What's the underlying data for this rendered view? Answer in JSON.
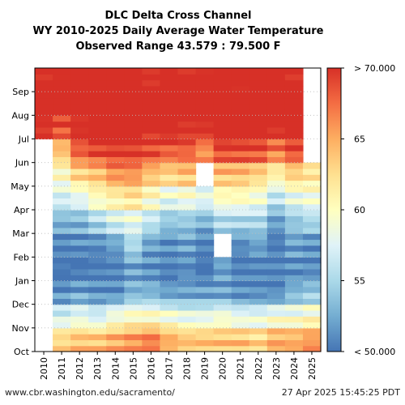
{
  "chart_data": {
    "type": "heatmap",
    "title": "DLC Delta Cross Channel",
    "subtitle": "WY 2010-2025 Daily Average Water Temperature",
    "range_text": "Observed Range 43.579 : 79.500 F",
    "x_categories": [
      "2010",
      "2011",
      "2012",
      "2013",
      "2014",
      "2015",
      "2016",
      "2017",
      "2018",
      "2019",
      "2020",
      "2021",
      "2022",
      "2023",
      "2024",
      "2025"
    ],
    "y_month_labels": [
      "Oct",
      "Nov",
      "Dec",
      "Jan",
      "Feb",
      "Mar",
      "Apr",
      "May",
      "Jun",
      "Jul",
      "Aug",
      "Sep"
    ],
    "colorbar": {
      "min": 50,
      "max": 70,
      "ticks": [
        {
          "value": 70,
          "label": "> 70.000"
        },
        {
          "value": 65,
          "label": "65"
        },
        {
          "value": 60,
          "label": "60"
        },
        {
          "value": 55,
          "label": "55"
        },
        {
          "value": 50,
          "label": "< 50.000"
        }
      ],
      "colors": [
        "#4575b4",
        "#74add1",
        "#abd9e9",
        "#e0f3f8",
        "#ffffbf",
        "#fee090",
        "#fdae61",
        "#f46d43",
        "#d73027"
      ]
    },
    "grid": "dotted",
    "monthly_mean_temp_F": {
      "2010": [
        null,
        null,
        null,
        null,
        null,
        null,
        null,
        null,
        null,
        71,
        72,
        71
      ],
      "2011": [
        63,
        57,
        51,
        50,
        50,
        53,
        57,
        60,
        64,
        69,
        72,
        71
      ],
      "2012": [
        64,
        58,
        52,
        50,
        51,
        53,
        58,
        63,
        68,
        71,
        72,
        71
      ],
      "2013": [
        64,
        57,
        51,
        50,
        51,
        55,
        60,
        64,
        69,
        72,
        72,
        71
      ],
      "2014": [
        65,
        59,
        51,
        50,
        52,
        57,
        61,
        66,
        70,
        72,
        73,
        72
      ],
      "2015": [
        66,
        60,
        53,
        52,
        55,
        58,
        62,
        66,
        70,
        72,
        73,
        72
      ],
      "2016": [
        67,
        60,
        53,
        51,
        52,
        56,
        60,
        64,
        69,
        71,
        72,
        71
      ],
      "2017": [
        65,
        59,
        52,
        50,
        51,
        54,
        58,
        63,
        68,
        72,
        73,
        72
      ],
      "2018": [
        64,
        58,
        52,
        51,
        52,
        54,
        59,
        64,
        68,
        71,
        72,
        71
      ],
      "2019": [
        64,
        58,
        52,
        50,
        50,
        53,
        58,
        null,
        66,
        71,
        72,
        71
      ],
      "2020": [
        64,
        59,
        52,
        52,
        null,
        55,
        60,
        64,
        69,
        71,
        72,
        71
      ],
      "2021": [
        64,
        58,
        51,
        50,
        51,
        55,
        60,
        64,
        69,
        72,
        72,
        71
      ],
      "2022": [
        63,
        58,
        51,
        50,
        52,
        55,
        59,
        63,
        69,
        72,
        73,
        72
      ],
      "2023": [
        65,
        59,
        51,
        50,
        50,
        52,
        56,
        61,
        67,
        71,
        73,
        72
      ],
      "2024": [
        65,
        59,
        53,
        51,
        52,
        54,
        58,
        63,
        69,
        72,
        73,
        71
      ],
      "2025": [
        66,
        60,
        54,
        51,
        51,
        55,
        59,
        62,
        null,
        null,
        null,
        null
      ]
    }
  },
  "footer": {
    "source_url": "www.cbr.washington.edu/sacramento/",
    "timestamp": "27 Apr 2025 15:45:25 PDT"
  }
}
